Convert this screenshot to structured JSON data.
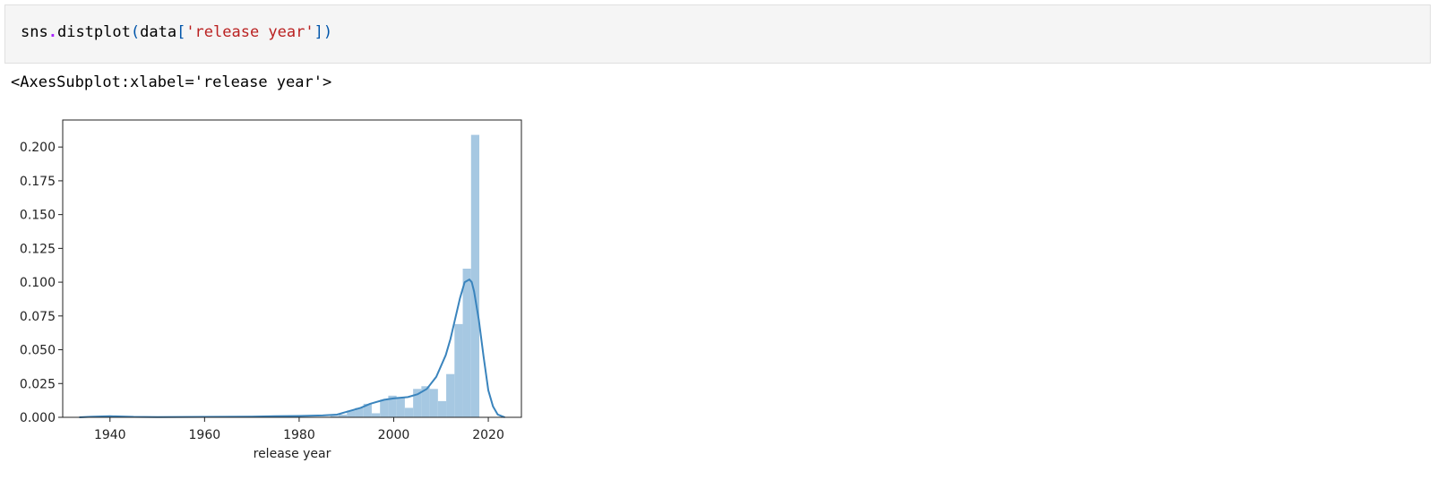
{
  "cell": {
    "code": {
      "obj": "sns",
      "dot": ".",
      "func": "distplot",
      "open_paren": "(",
      "arg_name": "data",
      "open_bracket": "[",
      "arg_str": "'release year'",
      "close": "])"
    },
    "output_text": "<AxesSubplot:xlabel='release year'>"
  },
  "colors": {
    "bar_fill": "#a6c8e2",
    "kde_line": "#3a84bd",
    "axis": "#222222"
  },
  "chart_data": {
    "type": "bar",
    "title": "",
    "xlabel": "release year",
    "ylabel": "",
    "xlim": [
      1930,
      2027
    ],
    "ylim": [
      0,
      0.22
    ],
    "x_ticks": [
      1940,
      1960,
      1980,
      2000,
      2020
    ],
    "y_ticks": [
      0.0,
      0.025,
      0.05,
      0.075,
      0.1,
      0.125,
      0.15,
      0.175,
      0.2
    ],
    "bins": {
      "edges": [
        1986.6,
        1988.35,
        1990.1,
        1991.85,
        1993.6,
        1995.35,
        1997.1,
        1998.85,
        2000.6,
        2002.35,
        2004.1,
        2005.85,
        2007.6,
        2009.35,
        2011.1,
        2012.85,
        2014.6,
        2016.35
      ],
      "values": [
        0.001,
        0.002,
        0.005,
        0.007,
        0.01,
        0.003,
        0.013,
        0.016,
        0.015,
        0.007,
        0.021,
        0.023,
        0.021,
        0.012,
        0.032,
        0.069,
        0.11,
        0.209
      ]
    },
    "kde": {
      "x": [
        1933.5,
        1936,
        1940,
        1945,
        1950,
        1960,
        1970,
        1975,
        1980,
        1985,
        1988,
        1990,
        1993,
        1995,
        1998,
        2000,
        2003,
        2005,
        2007,
        2009,
        2011,
        2012,
        2013,
        2014,
        2015,
        2016,
        2016.5,
        2017,
        2018,
        2019,
        2020,
        2021,
        2022,
        2023.5
      ],
      "y": [
        0.0,
        0.0004,
        0.0008,
        0.0003,
        0.0002,
        0.0003,
        0.0005,
        0.0008,
        0.001,
        0.0014,
        0.002,
        0.004,
        0.007,
        0.01,
        0.013,
        0.014,
        0.015,
        0.017,
        0.021,
        0.03,
        0.046,
        0.058,
        0.073,
        0.088,
        0.1,
        0.102,
        0.1,
        0.093,
        0.072,
        0.045,
        0.02,
        0.008,
        0.002,
        0.0
      ]
    }
  }
}
